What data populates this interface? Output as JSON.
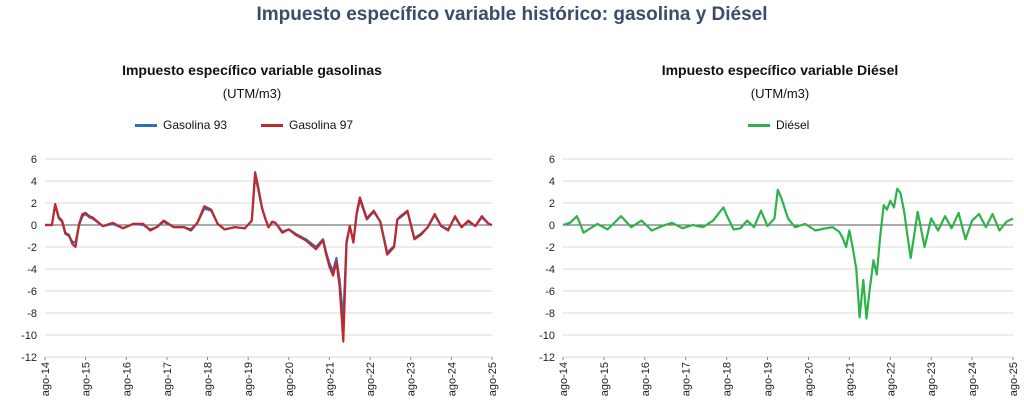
{
  "title": "Impuesto específico variable histórico: gasolina y Diésel",
  "colors": {
    "gasolina93": "#2e6fba",
    "gasolina97": "#c0282d",
    "diesel": "#2db34a",
    "zero_line": "#555555",
    "grid": "#d9d9d9"
  },
  "chart_data": [
    {
      "type": "line",
      "title": "Impuesto específico variable gasolinas",
      "subtitle": "(UTM/m3)",
      "ylim": [
        -12,
        6
      ],
      "yticks": [
        6,
        4,
        2,
        0,
        -2,
        -4,
        -6,
        -8,
        -10,
        -12
      ],
      "categories": [
        "ago-14",
        "ago-15",
        "ago-16",
        "ago-17",
        "ago-18",
        "ago-19",
        "ago-20",
        "ago-21",
        "ago-22",
        "ago-23",
        "ago-24",
        "ago-25"
      ],
      "x": [
        2014.58,
        2014.75,
        2014.83,
        2014.92,
        2015.0,
        2015.08,
        2015.17,
        2015.25,
        2015.33,
        2015.42,
        2015.5,
        2015.58,
        2015.67,
        2015.75,
        2016.0,
        2016.25,
        2016.5,
        2016.75,
        2017.0,
        2017.17,
        2017.33,
        2017.5,
        2017.75,
        2018.0,
        2018.17,
        2018.33,
        2018.5,
        2018.67,
        2018.83,
        2019.0,
        2019.25,
        2019.5,
        2019.67,
        2019.75,
        2019.83,
        2019.92,
        2020.0,
        2020.08,
        2020.17,
        2020.25,
        2020.42,
        2020.58,
        2020.75,
        2021.0,
        2021.25,
        2021.42,
        2021.5,
        2021.58,
        2021.67,
        2021.75,
        2021.83,
        2021.92,
        2022.0,
        2022.08,
        2022.17,
        2022.25,
        2022.33,
        2022.5,
        2022.67,
        2022.83,
        2023.0,
        2023.17,
        2023.25,
        2023.33,
        2023.5,
        2023.67,
        2023.83,
        2024.0,
        2024.17,
        2024.33,
        2024.5,
        2024.67,
        2024.83,
        2025.0,
        2025.17,
        2025.33,
        2025.5,
        2025.58
      ],
      "series": [
        {
          "name": "Gasolina 93",
          "values": [
            0,
            0,
            1.8,
            0.6,
            0.3,
            -0.8,
            -1.0,
            -1.5,
            -1.6,
            0.0,
            0.8,
            1.0,
            0.7,
            0.6,
            -0.1,
            0.1,
            -0.3,
            0.1,
            0.0,
            -0.4,
            -0.2,
            0.3,
            -0.2,
            -0.2,
            -0.4,
            0.2,
            1.5,
            1.3,
            0.1,
            -0.4,
            -0.2,
            -0.3,
            0.4,
            4.5,
            3.2,
            1.5,
            0.6,
            -0.2,
            0.3,
            0.2,
            -0.6,
            -0.4,
            -0.8,
            -1.3,
            -2.0,
            -1.3,
            -2.5,
            -3.5,
            -4.2,
            -3.0,
            -5.0,
            -8.6,
            -1.5,
            -0.1,
            -1.5,
            1.0,
            2.3,
            0.5,
            1.2,
            0.3,
            -2.5,
            -1.9,
            0.5,
            0.7,
            1.2,
            -1.2,
            -0.8,
            -0.2,
            0.9,
            -0.1,
            -0.4,
            0.7,
            -0.2,
            0.3,
            -0.1,
            0.7,
            0.1,
            0.0
          ]
        },
        {
          "name": "Gasolina 97",
          "values": [
            0,
            0,
            1.9,
            0.7,
            0.4,
            -0.7,
            -0.9,
            -1.7,
            -2.0,
            0.1,
            1.0,
            1.1,
            0.8,
            0.7,
            -0.1,
            0.2,
            -0.3,
            0.1,
            0.1,
            -0.5,
            -0.2,
            0.4,
            -0.2,
            -0.2,
            -0.5,
            0.2,
            1.7,
            1.4,
            0.1,
            -0.4,
            -0.2,
            -0.3,
            0.4,
            4.8,
            3.4,
            1.6,
            0.6,
            -0.2,
            0.3,
            0.2,
            -0.7,
            -0.4,
            -0.9,
            -1.4,
            -2.2,
            -1.4,
            -2.7,
            -3.8,
            -4.6,
            -3.3,
            -5.6,
            -10.6,
            -1.7,
            -0.1,
            -1.6,
            1.1,
            2.5,
            0.6,
            1.3,
            0.3,
            -2.7,
            -2.0,
            0.5,
            0.8,
            1.3,
            -1.3,
            -0.9,
            -0.2,
            1.0,
            -0.1,
            -0.5,
            0.8,
            -0.2,
            0.4,
            -0.1,
            0.8,
            0.1,
            0.0
          ]
        }
      ],
      "legend": "top"
    },
    {
      "type": "line",
      "title": "Impuesto específico variable Diésel",
      "subtitle": "(UTM/m3)",
      "ylim": [
        -12,
        6
      ],
      "yticks": [
        6,
        4,
        2,
        0,
        -2,
        -4,
        -6,
        -8,
        -10,
        -12
      ],
      "categories": [
        "ago-14",
        "ago-15",
        "ago-16",
        "ago-17",
        "ago-18",
        "ago-19",
        "ago-20",
        "ago-21",
        "ago-22",
        "ago-23",
        "ago-24",
        "ago-25"
      ],
      "x": [
        2014.58,
        2014.75,
        2014.92,
        2015.0,
        2015.08,
        2015.25,
        2015.42,
        2015.67,
        2016.0,
        2016.25,
        2016.5,
        2016.75,
        2017.0,
        2017.25,
        2017.5,
        2017.75,
        2018.0,
        2018.25,
        2018.5,
        2018.58,
        2018.75,
        2018.92,
        2019.08,
        2019.25,
        2019.42,
        2019.58,
        2019.75,
        2019.83,
        2019.92,
        2020.08,
        2020.25,
        2020.5,
        2020.75,
        2021.0,
        2021.17,
        2021.33,
        2021.42,
        2021.5,
        2021.58,
        2021.67,
        2021.75,
        2021.83,
        2021.92,
        2022.0,
        2022.08,
        2022.17,
        2022.25,
        2022.33,
        2022.42,
        2022.5,
        2022.58,
        2022.67,
        2022.75,
        2022.83,
        2022.92,
        2023.0,
        2023.08,
        2023.25,
        2023.42,
        2023.58,
        2023.75,
        2023.92,
        2024.08,
        2024.25,
        2024.42,
        2024.58,
        2024.75,
        2024.92,
        2025.08,
        2025.25,
        2025.42,
        2025.58
      ],
      "series": [
        {
          "name": "Diésel",
          "values": [
            0,
            0.2,
            0.8,
            0.1,
            -0.7,
            -0.3,
            0.1,
            -0.4,
            0.8,
            -0.2,
            0.4,
            -0.5,
            -0.1,
            0.2,
            -0.3,
            0.0,
            -0.2,
            0.4,
            1.6,
            0.9,
            -0.4,
            -0.3,
            0.4,
            -0.2,
            1.3,
            -0.1,
            0.6,
            3.2,
            2.4,
            0.6,
            -0.2,
            0.1,
            -0.5,
            -0.3,
            -0.2,
            -0.6,
            -1.2,
            -2.0,
            -0.5,
            -2.2,
            -4.0,
            -8.4,
            -5.0,
            -8.5,
            -5.8,
            -3.2,
            -4.5,
            -1.2,
            1.8,
            1.4,
            2.2,
            1.6,
            3.3,
            2.9,
            1.2,
            -1.0,
            -3.0,
            1.2,
            -2.0,
            0.6,
            -0.5,
            0.8,
            -0.3,
            1.1,
            -1.3,
            0.4,
            1.0,
            -0.2,
            1.0,
            -0.5,
            0.3,
            0.6
          ]
        }
      ],
      "legend": "top"
    }
  ]
}
